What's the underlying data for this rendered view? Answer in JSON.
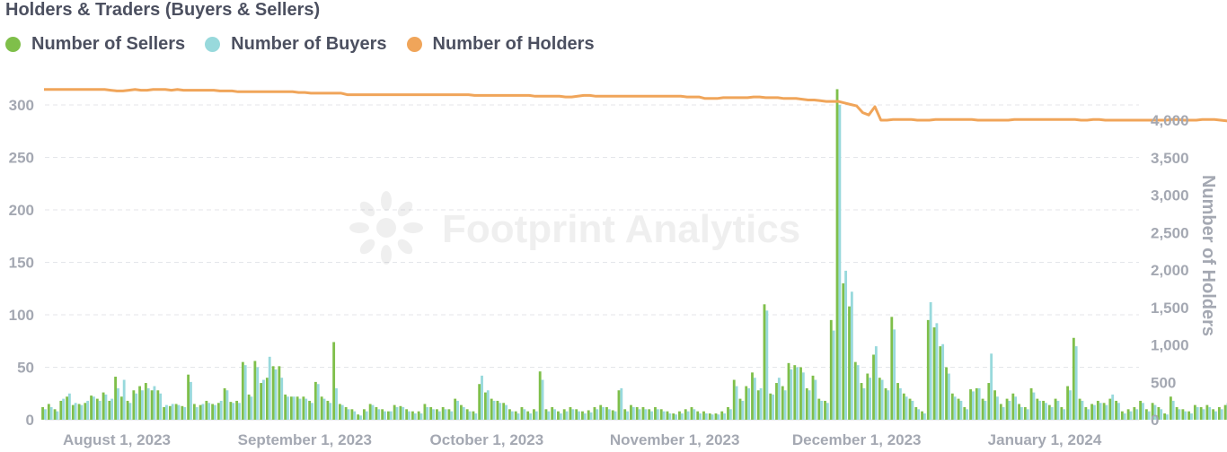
{
  "chart_title": "Holders & Traders (Buyers & Sellers)",
  "watermark": "Footprint Analytics",
  "legend": [
    {
      "label": "Number of Sellers",
      "color": "#7fbf4a"
    },
    {
      "label": "Number of Buyers",
      "color": "#98d9dc"
    },
    {
      "label": "Number of Holders",
      "color": "#f0a55a"
    }
  ],
  "chart_data": {
    "type": "bar+line",
    "title": "Holders & Traders (Buyers & Sellers)",
    "x_start": "2023-07-20",
    "x_tick_labels": [
      {
        "date": "2023-08-01",
        "label": "August 1, 2023"
      },
      {
        "date": "2023-09-01",
        "label": "September 1, 2023"
      },
      {
        "date": "2023-10-01",
        "label": "October 1, 2023"
      },
      {
        "date": "2023-11-01",
        "label": "November 1, 2023"
      },
      {
        "date": "2023-12-01",
        "label": "December 1, 2023"
      },
      {
        "date": "2024-01-01",
        "label": "January 1, 2024"
      }
    ],
    "y_left": {
      "range": [
        0,
        320
      ],
      "ticks": [
        0,
        50,
        100,
        150,
        200,
        250,
        300
      ],
      "tick_labels": [
        "0",
        "50",
        "100",
        "150",
        "200",
        "250",
        "300"
      ]
    },
    "y_right": {
      "label": "Number of Holders",
      "range": [
        0,
        4500
      ],
      "ticks": [
        0,
        500,
        1000,
        1500,
        2000,
        2500,
        3000,
        3500,
        4000
      ],
      "tick_labels": [
        "0",
        "500",
        "1,000",
        "1,500",
        "2,000",
        "2,500",
        "3,000",
        "3,500",
        "4,000"
      ]
    },
    "grid": true,
    "legend_position": "top-left",
    "series": [
      {
        "name": "Number of Sellers",
        "color": "#7fbf4a",
        "axis": "left",
        "values": [
          12,
          15,
          10,
          18,
          22,
          14,
          15,
          16,
          23,
          20,
          26,
          18,
          41,
          22,
          18,
          28,
          32,
          35,
          28,
          28,
          12,
          13,
          15,
          13,
          43,
          15,
          14,
          18,
          15,
          16,
          30,
          17,
          18,
          55,
          24,
          56,
          35,
          40,
          51,
          51,
          24,
          22,
          22,
          22,
          18,
          36,
          22,
          18,
          74,
          15,
          12,
          10,
          5,
          10,
          15,
          12,
          10,
          8,
          14,
          13,
          10,
          8,
          8,
          15,
          12,
          10,
          12,
          10,
          20,
          14,
          10,
          8,
          34,
          26,
          20,
          18,
          16,
          10,
          8,
          12,
          8,
          10,
          46,
          10,
          12,
          8,
          10,
          12,
          10,
          8,
          9,
          12,
          14,
          12,
          9,
          28,
          10,
          14,
          12,
          12,
          10,
          12,
          10,
          8,
          6,
          8,
          10,
          12,
          8,
          8,
          6,
          6,
          8,
          12,
          38,
          20,
          32,
          45,
          28,
          110,
          25,
          35,
          32,
          54,
          52,
          50,
          30,
          42,
          20,
          18,
          95,
          315,
          130,
          108,
          55,
          35,
          44,
          62,
          40,
          30,
          98,
          35,
          25,
          20,
          12,
          8,
          95,
          88,
          70,
          50,
          25,
          20,
          12,
          29,
          30,
          20,
          35,
          28,
          15,
          20,
          25,
          15,
          12,
          30,
          20,
          18,
          14,
          20,
          12,
          32,
          78,
          20,
          12,
          15,
          18,
          16,
          20,
          18,
          8,
          10,
          12,
          18,
          10,
          16,
          12,
          6,
          22,
          12,
          10,
          8,
          14,
          12,
          14,
          10,
          12,
          14,
          8,
          10,
          18,
          20,
          12,
          15,
          6,
          8,
          16,
          10,
          22,
          12,
          8,
          8,
          15,
          16,
          10,
          20,
          14,
          18,
          8,
          18,
          12,
          25,
          22,
          16,
          18,
          8,
          5
        ],
        "values_note": "one bar per day from x_start"
      },
      {
        "name": "Number of Buyers",
        "color": "#98d9dc",
        "axis": "left",
        "values": [
          10,
          12,
          8,
          20,
          25,
          16,
          14,
          18,
          22,
          18,
          24,
          20,
          30,
          38,
          16,
          25,
          28,
          30,
          32,
          25,
          14,
          15,
          14,
          12,
          36,
          12,
          15,
          16,
          14,
          18,
          28,
          16,
          16,
          52,
          22,
          50,
          38,
          60,
          48,
          40,
          22,
          22,
          20,
          20,
          16,
          34,
          20,
          16,
          30,
          14,
          10,
          8,
          4,
          8,
          14,
          10,
          8,
          8,
          12,
          12,
          8,
          6,
          6,
          12,
          10,
          8,
          10,
          8,
          18,
          12,
          8,
          6,
          42,
          28,
          18,
          16,
          14,
          8,
          6,
          10,
          6,
          8,
          38,
          8,
          10,
          6,
          8,
          10,
          8,
          6,
          7,
          10,
          12,
          10,
          8,
          30,
          8,
          12,
          10,
          10,
          8,
          10,
          8,
          6,
          5,
          6,
          8,
          10,
          6,
          6,
          5,
          5,
          6,
          10,
          32,
          18,
          30,
          40,
          30,
          104,
          24,
          40,
          28,
          48,
          50,
          45,
          28,
          38,
          18,
          16,
          85,
          300,
          142,
          122,
          52,
          30,
          40,
          70,
          38,
          28,
          86,
          30,
          22,
          18,
          10,
          6,
          112,
          92,
          72,
          44,
          22,
          18,
          10,
          27,
          30,
          18,
          63,
          22,
          12,
          18,
          22,
          12,
          10,
          26,
          18,
          16,
          12,
          18,
          10,
          28,
          70,
          18,
          10,
          14,
          16,
          14,
          24,
          16,
          6,
          8,
          10,
          16,
          8,
          14,
          10,
          5,
          18,
          10,
          8,
          6,
          12,
          10,
          12,
          8,
          10,
          16,
          6,
          8,
          16,
          18,
          10,
          13,
          5,
          6,
          14,
          8,
          25,
          10,
          6,
          6,
          12,
          22,
          8,
          18,
          12,
          16,
          6,
          20,
          10,
          22,
          20,
          14,
          16,
          6,
          4
        ]
      },
      {
        "name": "Number of Holders",
        "color": "#f0a55a",
        "axis": "right",
        "values": [
          4410,
          4410,
          4410,
          4410,
          4410,
          4410,
          4410,
          4410,
          4410,
          4410,
          4410,
          4400,
          4390,
          4390,
          4400,
          4410,
          4400,
          4400,
          4410,
          4410,
          4410,
          4400,
          4410,
          4400,
          4400,
          4400,
          4400,
          4400,
          4400,
          4390,
          4390,
          4390,
          4380,
          4380,
          4380,
          4380,
          4380,
          4380,
          4380,
          4380,
          4380,
          4380,
          4370,
          4370,
          4360,
          4360,
          4360,
          4360,
          4360,
          4360,
          4340,
          4340,
          4340,
          4340,
          4340,
          4340,
          4340,
          4340,
          4340,
          4340,
          4340,
          4340,
          4340,
          4340,
          4340,
          4340,
          4340,
          4340,
          4340,
          4340,
          4340,
          4330,
          4330,
          4330,
          4330,
          4330,
          4330,
          4330,
          4330,
          4330,
          4330,
          4320,
          4320,
          4320,
          4320,
          4320,
          4310,
          4310,
          4320,
          4330,
          4330,
          4320,
          4320,
          4320,
          4320,
          4320,
          4320,
          4320,
          4320,
          4320,
          4320,
          4320,
          4320,
          4320,
          4320,
          4320,
          4310,
          4310,
          4310,
          4290,
          4290,
          4290,
          4300,
          4300,
          4300,
          4300,
          4300,
          4310,
          4310,
          4300,
          4300,
          4300,
          4290,
          4290,
          4290,
          4280,
          4270,
          4270,
          4260,
          4250,
          4250,
          4250,
          4230,
          4210,
          4190,
          4100,
          4070,
          4180,
          4000,
          4000,
          4010,
          4010,
          4010,
          4010,
          4000,
          4000,
          4000,
          4010,
          4010,
          4010,
          4010,
          4010,
          4010,
          4010,
          4000,
          4000,
          4000,
          4000,
          4000,
          4000,
          4010,
          4010,
          4010,
          4010,
          4010,
          4010,
          4010,
          4010,
          4010,
          4010,
          4010,
          4000,
          4000,
          4010,
          4010,
          4000,
          4000,
          4000,
          4000,
          4000,
          4000,
          4000,
          4000,
          4000,
          4000,
          4000,
          4010,
          4010,
          4000,
          4000,
          4000,
          4010,
          4010,
          4010,
          4000,
          3990,
          3980,
          3990,
          3990,
          3990,
          3990,
          3990,
          3990,
          3990,
          3990,
          3990,
          3990,
          3990,
          3990,
          3980,
          3980,
          3980,
          3980,
          3980,
          3980,
          3980,
          3970,
          3960,
          3970,
          3970,
          3970,
          3960,
          3950,
          3940,
          3930,
          3930,
          3940,
          3940,
          3940,
          3930,
          3920,
          3910,
          3910,
          3910,
          3910
        ]
      }
    ]
  }
}
